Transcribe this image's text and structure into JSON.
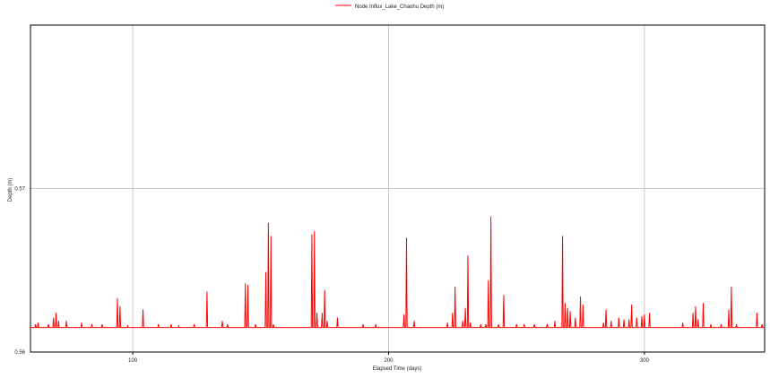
{
  "chart_data": {
    "type": "line",
    "title": "",
    "xlabel": "Elapsed Time (days)",
    "ylabel": "Depth (m)",
    "xlim": [
      60,
      347
    ],
    "ylim": [
      0.56,
      0.58
    ],
    "x_ticks": [
      100,
      200,
      300
    ],
    "y_ticks": [
      0.56,
      0.57
    ],
    "grid": true,
    "legend_position": "top-center",
    "series": [
      {
        "name": "Node Influx_Lake_Chaohu Depth (m)",
        "color": "#ff0000",
        "baseline": 0.5615,
        "spikes": [
          [
            62,
            0.5617
          ],
          [
            63,
            0.5618
          ],
          [
            67,
            0.5617
          ],
          [
            69,
            0.5621
          ],
          [
            70,
            0.5624
          ],
          [
            71,
            0.5619
          ],
          [
            74,
            0.5619
          ],
          [
            80,
            0.5618
          ],
          [
            84,
            0.5617
          ],
          [
            88,
            0.5617
          ],
          [
            94,
            0.5633
          ],
          [
            95,
            0.5628
          ],
          [
            98,
            0.5616
          ],
          [
            104,
            0.5626
          ],
          [
            110,
            0.5617
          ],
          [
            115,
            0.5617
          ],
          [
            118,
            0.5616
          ],
          [
            124,
            0.5617
          ],
          [
            129,
            0.5637
          ],
          [
            135,
            0.5619
          ],
          [
            137,
            0.5617
          ],
          [
            144,
            0.5642
          ],
          [
            145,
            0.5641
          ],
          [
            148,
            0.5617
          ],
          [
            152,
            0.5649
          ],
          [
            153,
            0.5679
          ],
          [
            154,
            0.5671
          ],
          [
            155,
            0.5617
          ],
          [
            170,
            0.5672
          ],
          [
            171,
            0.5674
          ],
          [
            172,
            0.5624
          ],
          [
            174,
            0.5624
          ],
          [
            175,
            0.5638
          ],
          [
            176,
            0.5619
          ],
          [
            180,
            0.5621
          ],
          [
            190,
            0.5617
          ],
          [
            195,
            0.5617
          ],
          [
            206,
            0.5623
          ],
          [
            207,
            0.567
          ],
          [
            210,
            0.5619
          ],
          [
            223,
            0.5618
          ],
          [
            225,
            0.5624
          ],
          [
            226,
            0.564
          ],
          [
            229,
            0.5619
          ],
          [
            230,
            0.5627
          ],
          [
            231,
            0.5659
          ],
          [
            232,
            0.5618
          ],
          [
            236,
            0.5617
          ],
          [
            238,
            0.5617
          ],
          [
            239,
            0.5644
          ],
          [
            240,
            0.5683
          ],
          [
            243,
            0.5617
          ],
          [
            245,
            0.5635
          ],
          [
            250,
            0.5617
          ],
          [
            253,
            0.5617
          ],
          [
            257,
            0.5617
          ],
          [
            262,
            0.5617
          ],
          [
            265,
            0.5619
          ],
          [
            268,
            0.5671
          ],
          [
            269,
            0.563
          ],
          [
            270,
            0.5627
          ],
          [
            271,
            0.5625
          ],
          [
            273,
            0.5621
          ],
          [
            275,
            0.5634
          ],
          [
            276,
            0.5629
          ],
          [
            284,
            0.5618
          ],
          [
            285,
            0.5626
          ],
          [
            287,
            0.5619
          ],
          [
            290,
            0.5621
          ],
          [
            292,
            0.562
          ],
          [
            294,
            0.562
          ],
          [
            295,
            0.5629
          ],
          [
            297,
            0.5621
          ],
          [
            299,
            0.5622
          ],
          [
            300,
            0.5623
          ],
          [
            302,
            0.5624
          ],
          [
            315,
            0.5618
          ],
          [
            319,
            0.5624
          ],
          [
            320,
            0.5628
          ],
          [
            321,
            0.562
          ],
          [
            323,
            0.563
          ],
          [
            326,
            0.5617
          ],
          [
            330,
            0.5617
          ],
          [
            333,
            0.5626
          ],
          [
            334,
            0.564
          ],
          [
            336,
            0.5617
          ],
          [
            344,
            0.5624
          ],
          [
            346,
            0.5617
          ]
        ]
      }
    ]
  }
}
